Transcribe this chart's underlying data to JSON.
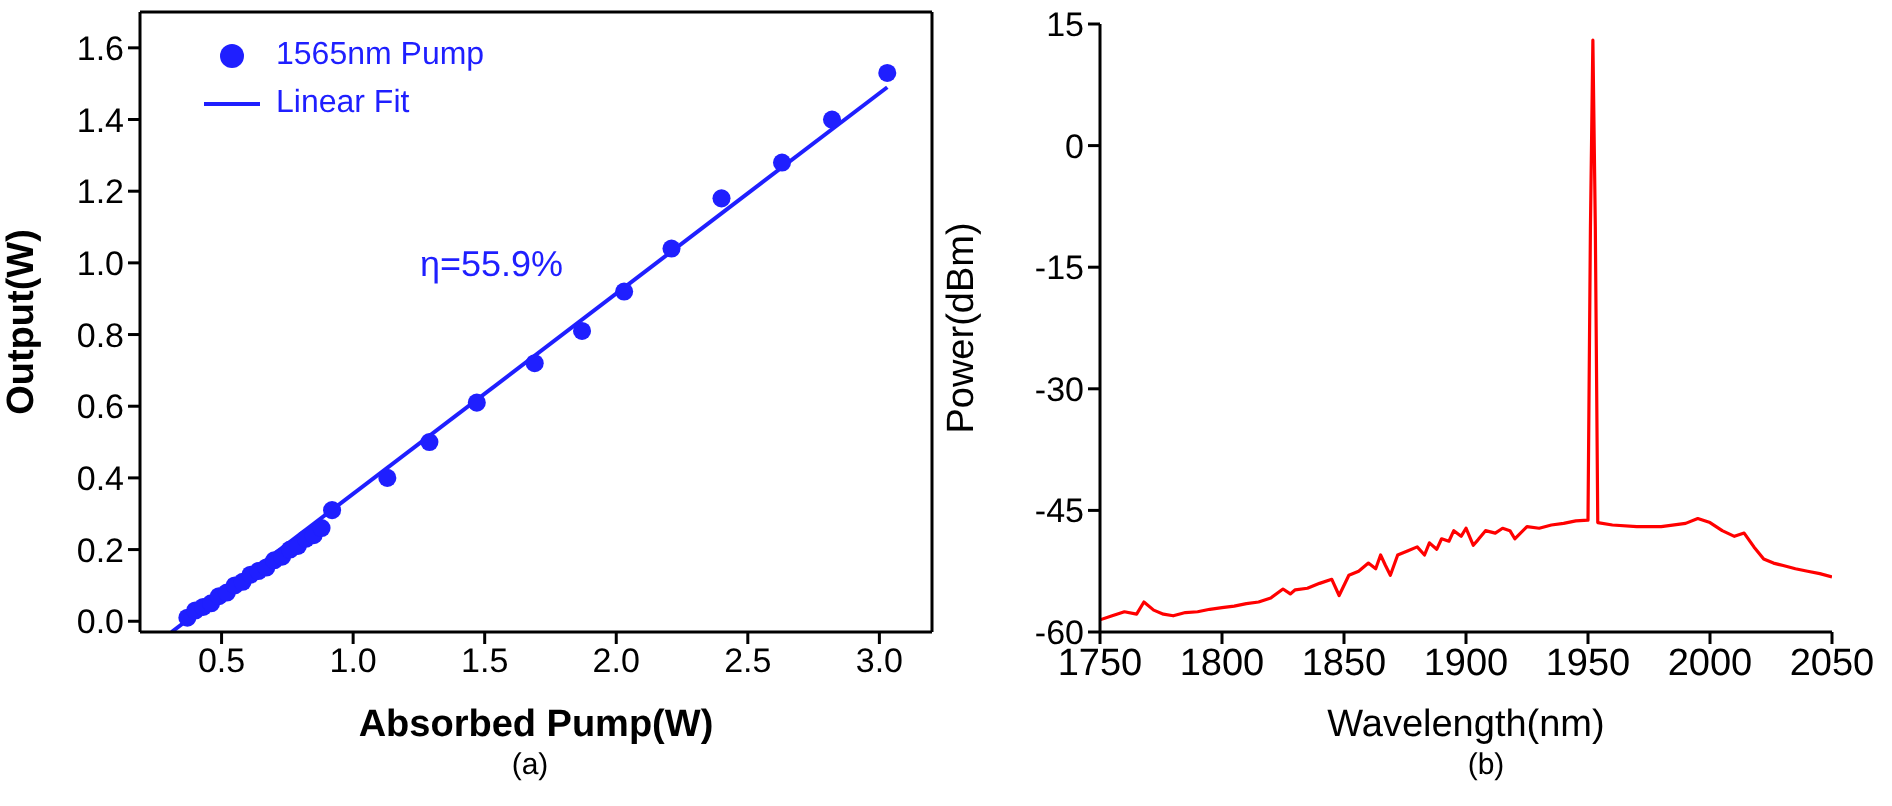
{
  "chart_data": [
    {
      "type": "scatter",
      "xlabel": "Absorbed Pump(W)",
      "ylabel": "Output(W)",
      "xlim": [
        0.19,
        3.2
      ],
      "ylim": [
        -0.03,
        1.7
      ],
      "xticks": [
        0.5,
        {
          "value": 1,
          "label": "1.0"
        },
        1.5,
        {
          "value": 2,
          "label": "2.0"
        },
        2.5,
        {
          "value": 3,
          "label": "3.0"
        }
      ],
      "yticks": [
        {
          "value": 0,
          "label": "0.0"
        },
        0.2,
        0.4,
        0.6,
        0.8,
        {
          "value": 1,
          "label": "1.0"
        },
        1.2,
        1.4,
        1.6
      ],
      "legend": "top left",
      "grid": false,
      "annotations": [
        "η=55.9%",
        "(a)"
      ],
      "series": [
        {
          "name": "1565nm Pump",
          "marker": "circle",
          "color": "#1f1fff",
          "x": [
            0.37,
            0.4,
            0.43,
            0.46,
            0.49,
            0.52,
            0.55,
            0.58,
            0.61,
            0.64,
            0.67,
            0.7,
            0.73,
            0.76,
            0.79,
            0.82,
            0.85,
            0.88,
            0.92,
            1.13,
            1.29,
            1.47,
            1.69,
            1.87,
            2.03,
            2.21,
            2.4,
            2.63,
            2.82,
            3.03
          ],
          "values": [
            0.01,
            0.03,
            0.04,
            0.05,
            0.07,
            0.08,
            0.1,
            0.11,
            0.13,
            0.14,
            0.15,
            0.17,
            0.18,
            0.2,
            0.21,
            0.23,
            0.24,
            0.26,
            0.31,
            0.4,
            0.5,
            0.61,
            0.72,
            0.81,
            0.92,
            1.04,
            1.18,
            1.28,
            1.4,
            1.53
          ]
        },
        {
          "name": "Linear Fit",
          "type": "line",
          "marker": "none",
          "color": "#1f1fff",
          "x": [
            0.31,
            3.03
          ],
          "values": [
            -0.03,
            1.49
          ]
        }
      ]
    },
    {
      "type": "line",
      "xlabel": "Wavelength(nm)",
      "ylabel": "Power(dBm)",
      "xlim": [
        1750,
        2050
      ],
      "ylim": [
        -60,
        15
      ],
      "xticks": [
        1750,
        1800,
        1850,
        1900,
        1950,
        2000,
        2050
      ],
      "yticks": [
        -60,
        -45,
        -30,
        -15,
        0,
        15
      ],
      "grid": false,
      "legend": false,
      "annotations": [
        "(b)"
      ],
      "series": [
        {
          "marker": "none",
          "color": "#ff0000",
          "x": [
            1750,
            1755,
            1760,
            1765,
            1768,
            1772,
            1776,
            1780,
            1785,
            1790,
            1795,
            1800,
            1805,
            1810,
            1815,
            1820,
            1825,
            1828,
            1830,
            1835,
            1840,
            1845,
            1848,
            1852,
            1856,
            1860,
            1863,
            1865,
            1867,
            1869,
            1872,
            1876,
            1880,
            1883,
            1885,
            1888,
            1890,
            1893,
            1895,
            1898,
            1900,
            1903,
            1905,
            1908,
            1912,
            1915,
            1918,
            1920,
            1925,
            1930,
            1935,
            1940,
            1945,
            1950,
            1951,
            1952,
            1953,
            1954,
            1960,
            1970,
            1980,
            1990,
            1995,
            2000,
            2005,
            2010,
            2014,
            2018,
            2022,
            2026,
            2030,
            2035,
            2040,
            2045,
            2050
          ],
          "values": [
            -58.5,
            -58,
            -57.5,
            -57.8,
            -56.3,
            -57.3,
            -57.8,
            -58,
            -57.6,
            -57.5,
            -57.2,
            -57,
            -56.8,
            -56.5,
            -56.3,
            -55.8,
            -54.7,
            -55.3,
            -54.8,
            -54.6,
            -54,
            -53.5,
            -55.5,
            -53,
            -52.5,
            -51.5,
            -52.2,
            -50.5,
            -51.8,
            -53,
            -50.5,
            -50,
            -49.5,
            -50.5,
            -49,
            -49.8,
            -48.5,
            -48.8,
            -47.5,
            -48.2,
            -47.2,
            -49.3,
            -48.6,
            -47.5,
            -47.8,
            -47.2,
            -47.5,
            -48.5,
            -47,
            -47.2,
            -46.8,
            -46.6,
            -46.3,
            -46.2,
            -10,
            13,
            -10,
            -46.5,
            -46.8,
            -47,
            -47,
            -46.6,
            -46,
            -46.5,
            -47.5,
            -48.2,
            -47.8,
            -49.5,
            -51,
            -51.5,
            -51.8,
            -52.2,
            -52.5,
            -52.8,
            -53.2
          ]
        }
      ]
    }
  ]
}
